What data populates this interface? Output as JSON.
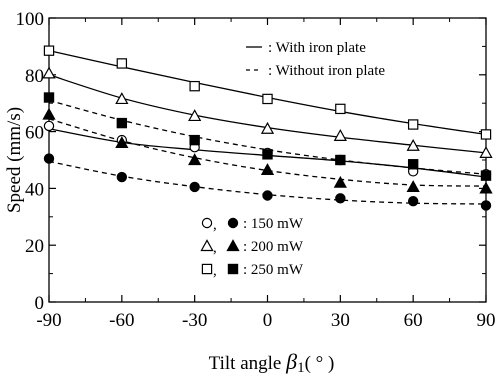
{
  "chart_data": {
    "type": "line",
    "xlabel": "Tilt angle",
    "xlabel_symbol": "β",
    "xlabel_subscript": "1",
    "xlabel_unit": "( ° )",
    "ylabel": "Speed (mm/s)",
    "xlim": [
      -90,
      90
    ],
    "ylim": [
      0,
      100
    ],
    "x_ticks": [
      "-90",
      "-60",
      "-30",
      "0",
      "30",
      "60",
      "90"
    ],
    "y_ticks": [
      "0",
      "20",
      "40",
      "60",
      "80",
      "100"
    ],
    "grid": false,
    "x": [
      -90,
      -60,
      -30,
      0,
      30,
      60,
      90
    ],
    "series": [
      {
        "name": "150 mW",
        "condition": "With iron plate",
        "marker": "open-circle",
        "linestyle": "solid",
        "values": [
          62,
          57,
          54.5,
          52.5,
          50,
          46,
          45
        ],
        "fit": [
          61,
          56.2,
          53.6,
          51.6,
          49.7,
          47.2,
          44
        ]
      },
      {
        "name": "200 mW",
        "condition": "With iron plate",
        "marker": "open-triangle",
        "linestyle": "solid",
        "values": [
          80.5,
          71.5,
          65.5,
          61,
          58.5,
          55,
          52.5
        ],
        "fit": [
          80,
          71.8,
          65.8,
          61.4,
          58,
          55.2,
          52.5
        ]
      },
      {
        "name": "250 mW",
        "condition": "With iron plate",
        "marker": "open-square",
        "linestyle": "solid",
        "values": [
          88.5,
          84,
          76,
          71.5,
          68,
          62.5,
          59
        ],
        "fit": [
          88.5,
          82.8,
          77.3,
          72,
          67.1,
          62.8,
          59
        ]
      },
      {
        "name": "150 mW",
        "condition": "Without iron plate",
        "marker": "filled-circle",
        "linestyle": "dashed",
        "values": [
          50.5,
          44,
          40.5,
          37.5,
          36.5,
          35.5,
          34
        ],
        "fit": [
          49.5,
          44.3,
          40.6,
          37.8,
          35.9,
          34.8,
          34.5
        ]
      },
      {
        "name": "200 mW",
        "condition": "Without iron plate",
        "marker": "filled-triangle",
        "linestyle": "dashed",
        "values": [
          66,
          56,
          50,
          46.5,
          42,
          40.5,
          40
        ],
        "fit": [
          64.5,
          56.8,
          50.8,
          46.3,
          43.2,
          41.2,
          40.8
        ]
      },
      {
        "name": "250 mW",
        "condition": "Without iron plate",
        "marker": "filled-square",
        "linestyle": "dashed",
        "values": [
          72,
          63,
          57,
          52,
          50,
          48.5,
          44.5
        ],
        "fit": [
          71,
          64,
          58.2,
          53.6,
          50,
          47.2,
          45
        ]
      }
    ],
    "legend_lines": [
      {
        "style": "solid",
        "label": ": With iron plate"
      },
      {
        "style": "dashed",
        "label": ": Without iron plate"
      }
    ],
    "legend_markers": [
      {
        "open": "open-circle",
        "filled": "filled-circle",
        "label": ": 150 mW"
      },
      {
        "open": "open-triangle",
        "filled": "filled-triangle",
        "label": ": 200 mW"
      },
      {
        "open": "open-square",
        "filled": "filled-square",
        "label": ": 250 mW"
      }
    ],
    "legend_line_placement": "top-right",
    "legend_marker_placement": "bottom-left",
    "colors": {
      "axis": "#000000",
      "line": "#000000",
      "background": "#ffffff"
    }
  }
}
